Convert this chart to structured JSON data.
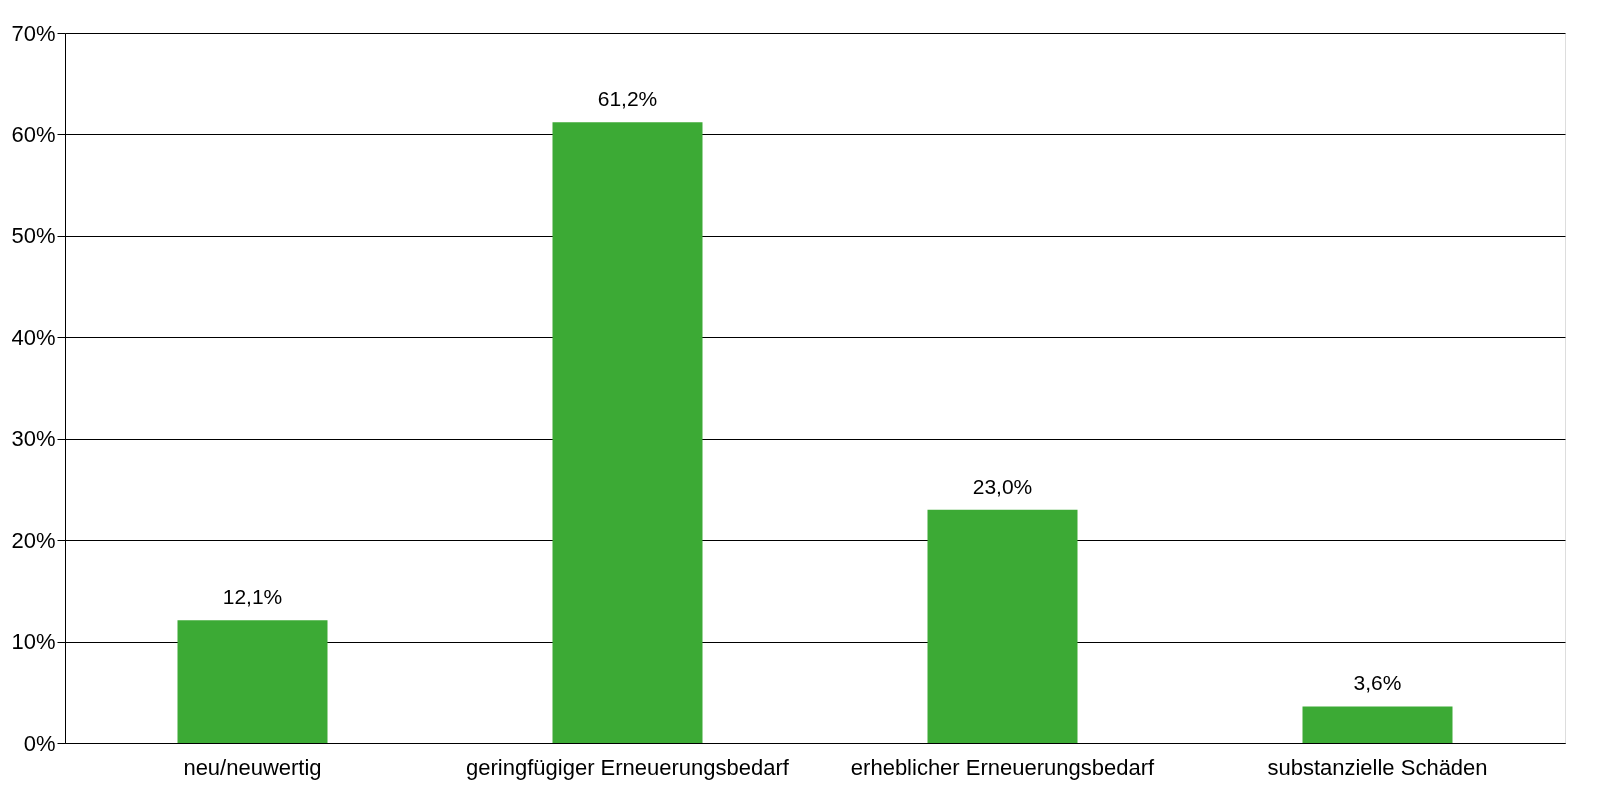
{
  "chart_data": {
    "type": "bar",
    "categories": [
      "neu/neuwertig",
      "geringfügiger Erneuerungsbedarf",
      "erheblicher Erneuerungsbedarf",
      "substanzielle Schäden"
    ],
    "values": [
      12.1,
      61.2,
      23.0,
      3.6
    ],
    "value_labels": [
      "12,1%",
      "61,2%",
      "23,0%",
      "3,6%"
    ],
    "color": "#3caa35",
    "ylim": [
      0,
      70
    ],
    "yticks": [
      {
        "value": 0,
        "label": "0%"
      },
      {
        "value": 10,
        "label": "10%"
      },
      {
        "value": 20,
        "label": "20%"
      },
      {
        "value": 30,
        "label": "30%"
      },
      {
        "value": 40,
        "label": "40%"
      },
      {
        "value": 50,
        "label": "50%"
      },
      {
        "value": 60,
        "label": "60%"
      },
      {
        "value": 70,
        "label": "70%"
      }
    ],
    "grid": "y"
  }
}
